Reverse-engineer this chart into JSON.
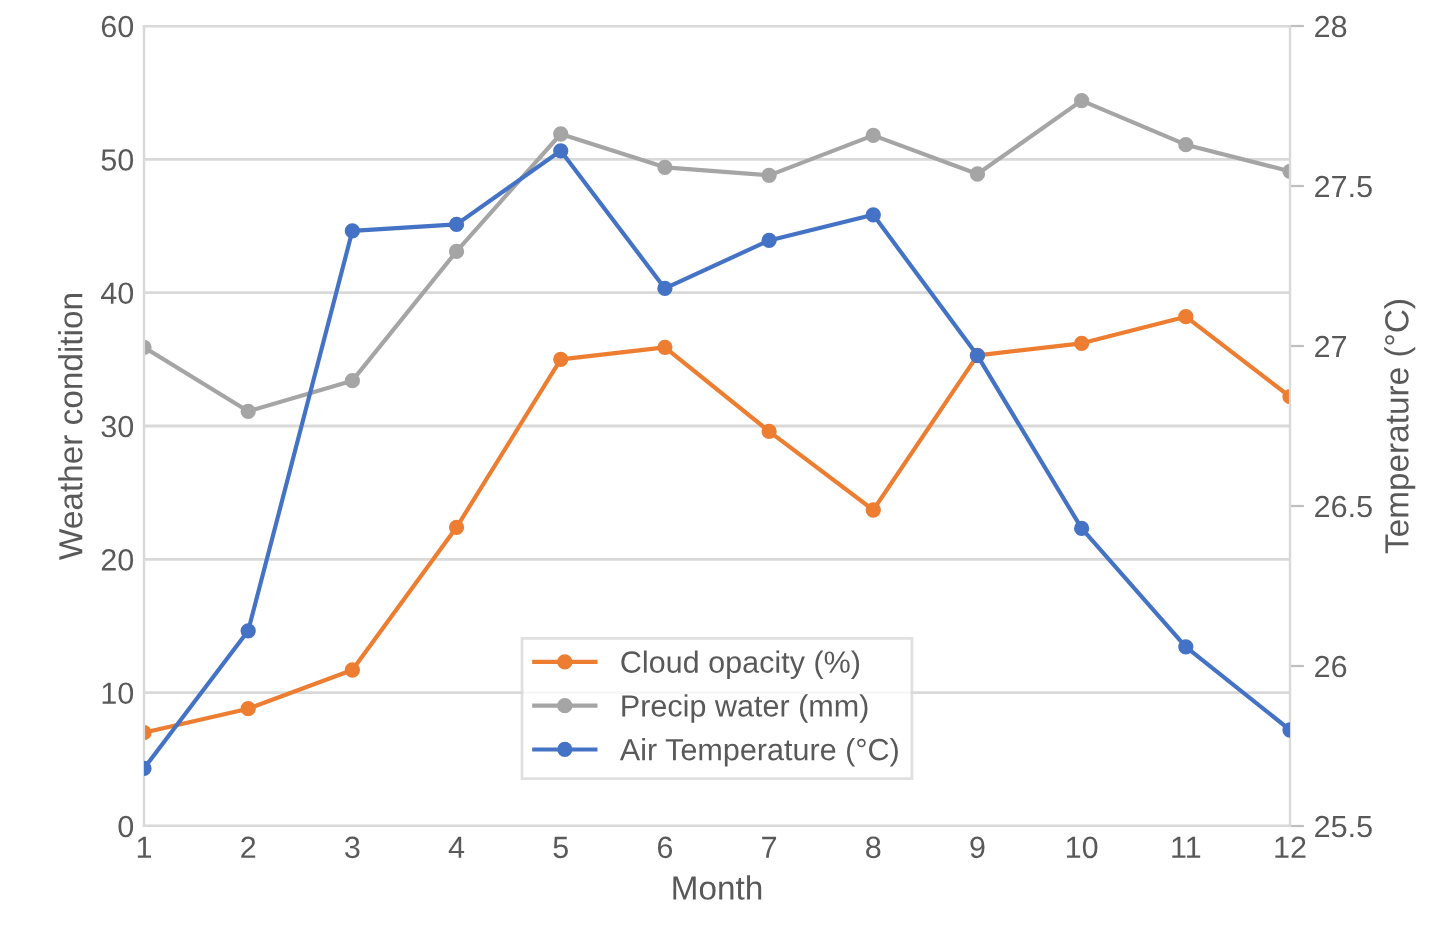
{
  "chart_data": {
    "type": "line",
    "xlabel": "Month",
    "ylabel": "Weather condition",
    "y2label": "Temperature (°C)",
    "x": [
      1,
      2,
      3,
      4,
      5,
      6,
      7,
      8,
      9,
      10,
      11,
      12
    ],
    "xlim": [
      1,
      12
    ],
    "xticks": [
      1,
      2,
      3,
      4,
      5,
      6,
      7,
      8,
      9,
      10,
      11,
      12
    ],
    "ylim": [
      0,
      60
    ],
    "yticks": [
      0,
      10,
      20,
      30,
      40,
      50,
      60
    ],
    "y2lim": [
      25.5,
      28
    ],
    "y2ticks": [
      25.5,
      26,
      26.5,
      27,
      27.5,
      28
    ],
    "grid": "y",
    "legend": "bottom",
    "marker": "circle",
    "line_style": "solid",
    "series": [
      {
        "name": "Cloud opacity (%)",
        "color": "#ed7d31",
        "values": [
          7.0,
          8.8,
          11.7,
          22.4,
          35.0,
          35.9,
          29.6,
          23.7,
          35.3,
          36.2,
          38.2,
          32.2
        ]
      },
      {
        "name": "Precip water (mm)",
        "color": "#a5a5a5",
        "values": [
          35.9,
          31.1,
          33.4,
          43.1,
          51.9,
          49.4,
          48.8,
          51.8,
          48.9,
          54.4,
          51.1,
          49.1
        ]
      },
      {
        "name": "Air Temperature (°C)",
        "color": "#4472c4",
        "axis": "y2",
        "values": [
          25.68,
          26.11,
          27.36,
          27.38,
          27.61,
          27.18,
          27.33,
          27.41,
          26.97,
          26.43,
          26.06,
          25.8
        ]
      }
    ]
  }
}
